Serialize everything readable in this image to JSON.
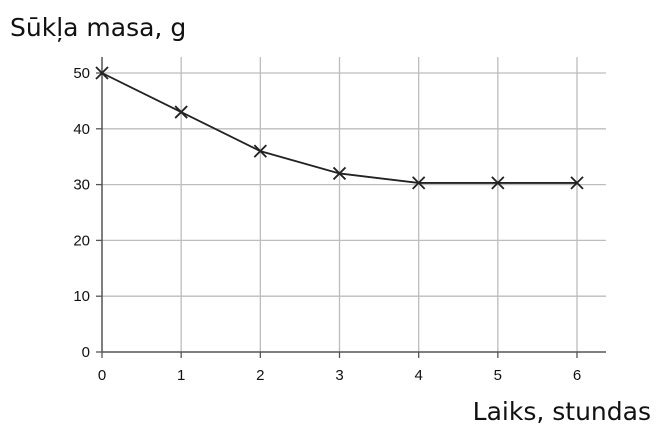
{
  "chart_data": {
    "type": "line",
    "title": "",
    "ylabel": "Sūkļa masa, g",
    "xlabel": "Laiks, stundas",
    "x": [
      0,
      1,
      2,
      3,
      4,
      5,
      6
    ],
    "series": [
      {
        "values": [
          50,
          43,
          36,
          32,
          30.3,
          30.3,
          30.3
        ]
      }
    ],
    "xlim": [
      0,
      6
    ],
    "ylim": [
      0,
      50
    ],
    "xticks": [
      "0",
      "1",
      "2",
      "3",
      "4",
      "5",
      "6"
    ],
    "yticks": [
      "0",
      "10",
      "20",
      "30",
      "40",
      "50"
    ],
    "grid": true,
    "marker": "x",
    "colors": {
      "line": "#222222",
      "grid": "#bdbdbd",
      "axis": "#555555"
    }
  }
}
